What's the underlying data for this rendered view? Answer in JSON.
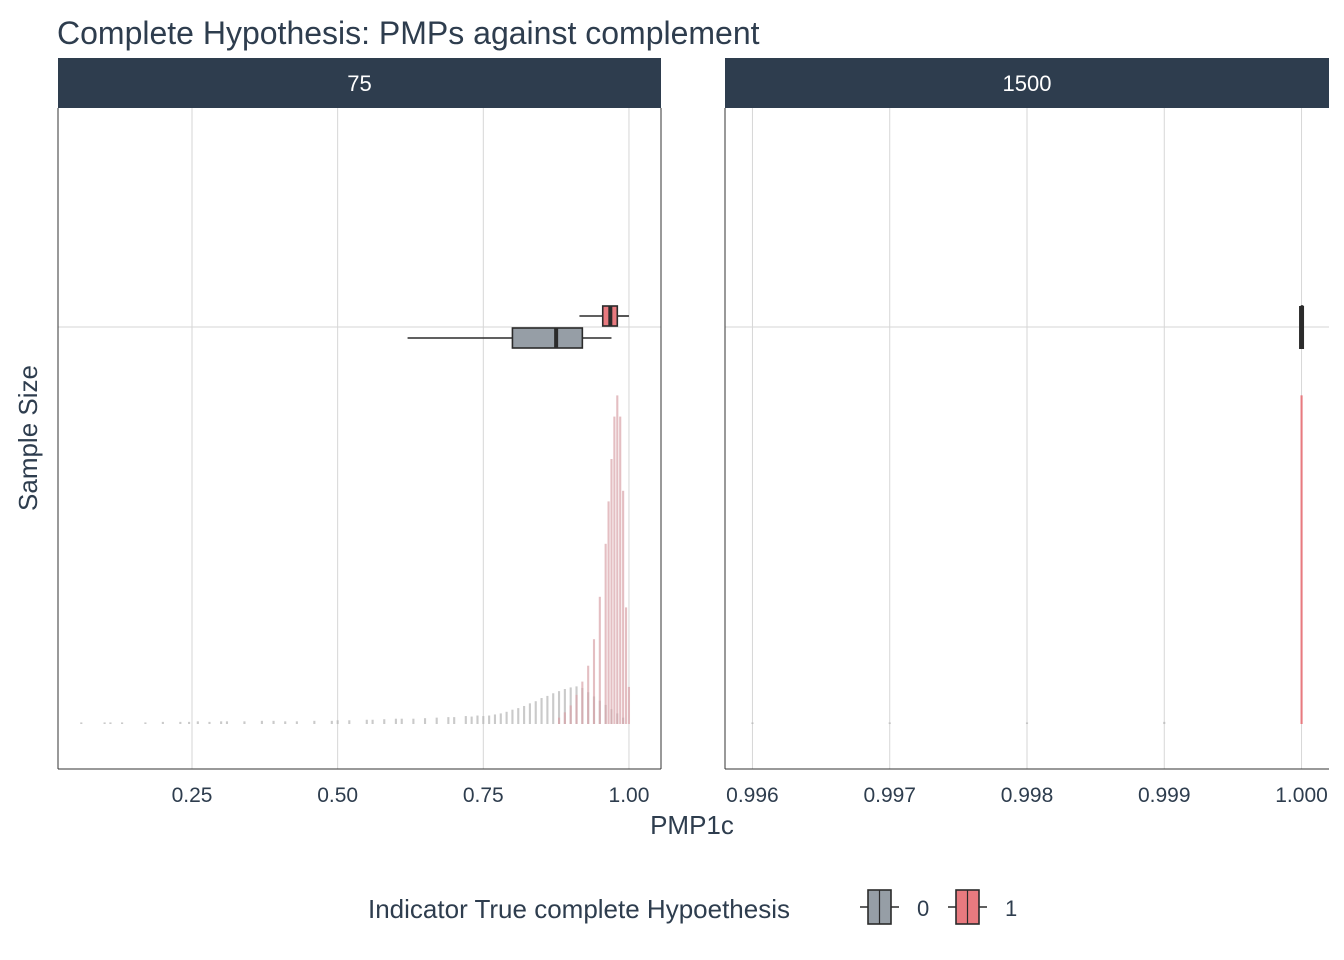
{
  "chart_data": {
    "type": "boxplot",
    "title": "Complete Hypothesis: PMPs against complement",
    "xlabel": "PMP1c",
    "ylabel": "Sample Size",
    "legend": {
      "title": "Indicator True complete Hypoethesis",
      "position": "bottom",
      "entries": [
        {
          "label": "0",
          "color": "#969ea6"
        },
        {
          "label": "1",
          "color": "#e87a7f"
        }
      ]
    },
    "colors": {
      "strip": "#2e3d4e",
      "grid": "#d6d6d6",
      "group0": "#969ea6",
      "group1": "#e87a7f",
      "hist0": "#b8b8b8",
      "hist1": "#d9a3a8",
      "line": "#2b2b2b"
    },
    "panels": [
      {
        "strip": "75",
        "xlim": [
          0.02,
          1.055
        ],
        "xticks": [
          0.25,
          0.5,
          0.75,
          1.0
        ],
        "xtick_labels": [
          "0.25",
          "0.50",
          "0.75",
          "1.00"
        ],
        "boxes": [
          {
            "group": "0",
            "whisker_low": 0.62,
            "q1": 0.8,
            "median": 0.875,
            "q3": 0.92,
            "whisker_high": 0.97
          },
          {
            "group": "1",
            "whisker_low": 0.915,
            "q1": 0.955,
            "median": 0.968,
            "q3": 0.98,
            "whisker_high": 1.0
          }
        ],
        "histogram": {
          "group0": [
            [
              0.06,
              0.3
            ],
            [
              0.1,
              0.3
            ],
            [
              0.11,
              0.3
            ],
            [
              0.13,
              0.3
            ],
            [
              0.17,
              0.3
            ],
            [
              0.2,
              0.4
            ],
            [
              0.23,
              0.4
            ],
            [
              0.245,
              0.4
            ],
            [
              0.26,
              0.5
            ],
            [
              0.28,
              0.4
            ],
            [
              0.3,
              0.5
            ],
            [
              0.31,
              0.5
            ],
            [
              0.34,
              0.5
            ],
            [
              0.37,
              0.6
            ],
            [
              0.39,
              0.6
            ],
            [
              0.41,
              0.5
            ],
            [
              0.43,
              0.5
            ],
            [
              0.46,
              0.6
            ],
            [
              0.49,
              0.6
            ],
            [
              0.5,
              0.7
            ],
            [
              0.52,
              0.7
            ],
            [
              0.55,
              0.8
            ],
            [
              0.56,
              0.8
            ],
            [
              0.58,
              0.9
            ],
            [
              0.6,
              1.0
            ],
            [
              0.61,
              1.0
            ],
            [
              0.63,
              1.0
            ],
            [
              0.65,
              1.1
            ],
            [
              0.67,
              1.2
            ],
            [
              0.69,
              1.3
            ],
            [
              0.7,
              1.3
            ],
            [
              0.72,
              1.5
            ],
            [
              0.73,
              1.4
            ],
            [
              0.74,
              1.6
            ],
            [
              0.75,
              1.5
            ],
            [
              0.76,
              1.6
            ],
            [
              0.77,
              1.8
            ],
            [
              0.78,
              2.0
            ],
            [
              0.79,
              2.3
            ],
            [
              0.8,
              2.7
            ],
            [
              0.81,
              3.0
            ],
            [
              0.82,
              3.4
            ],
            [
              0.83,
              3.9
            ],
            [
              0.84,
              4.3
            ],
            [
              0.85,
              4.9
            ],
            [
              0.86,
              5.3
            ],
            [
              0.87,
              5.8
            ],
            [
              0.88,
              6.2
            ],
            [
              0.89,
              6.6
            ],
            [
              0.9,
              6.9
            ],
            [
              0.91,
              7.1
            ],
            [
              0.92,
              6.8
            ],
            [
              0.93,
              6.0
            ],
            [
              0.94,
              5.2
            ],
            [
              0.95,
              4.4
            ],
            [
              0.96,
              3.6
            ],
            [
              0.97,
              2.8
            ],
            [
              0.98,
              2.0
            ],
            [
              0.99,
              1.2
            ]
          ],
          "group1": [
            [
              0.88,
              1.2
            ],
            [
              0.89,
              2.2
            ],
            [
              0.9,
              3.5
            ],
            [
              0.91,
              5.5
            ],
            [
              0.92,
              8.0
            ],
            [
              0.93,
              11.0
            ],
            [
              0.94,
              16.0
            ],
            [
              0.95,
              24.0
            ],
            [
              0.96,
              34.0
            ],
            [
              0.965,
              42.0
            ],
            [
              0.97,
              50.0
            ],
            [
              0.975,
              58.0
            ],
            [
              0.98,
              62.0
            ],
            [
              0.985,
              58.0
            ],
            [
              0.99,
              44.0
            ],
            [
              0.995,
              22.0
            ],
            [
              1.0,
              7.0
            ]
          ]
        }
      },
      {
        "strip": "1500",
        "xlim": [
          0.9958,
          1.0002
        ],
        "xticks": [
          0.996,
          0.997,
          0.998,
          0.999,
          1.0
        ],
        "xtick_labels": [
          "0.996",
          "0.997",
          "0.998",
          "0.999",
          "1.000"
        ],
        "boxes": [
          {
            "group": "0",
            "whisker_low": 1.0,
            "q1": 1.0,
            "median": 1.0,
            "q3": 1.0,
            "whisker_high": 1.0
          },
          {
            "group": "1",
            "whisker_low": 1.0,
            "q1": 1.0,
            "median": 1.0,
            "q3": 1.0,
            "whisker_high": 1.0
          }
        ],
        "histogram": {
          "group0": [
            [
              0.996,
              0.3
            ],
            [
              0.997,
              0.3
            ],
            [
              0.998,
              0.3
            ],
            [
              0.999,
              0.4
            ]
          ],
          "group1": [
            [
              1.0,
              62.0
            ]
          ]
        }
      }
    ]
  }
}
